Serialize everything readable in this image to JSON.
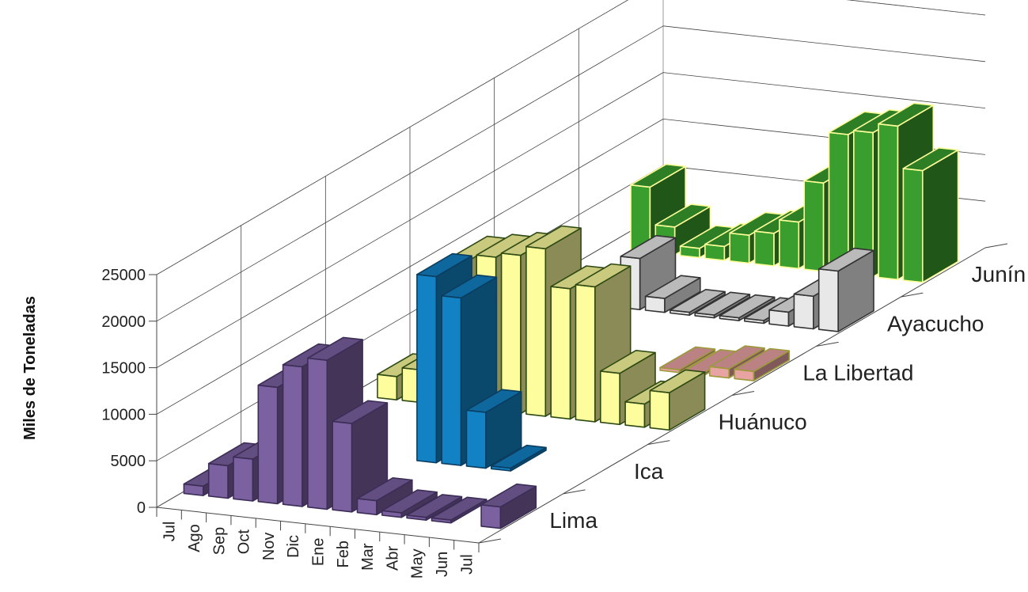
{
  "chart_data": {
    "type": "bar",
    "subtype": "3d-bar",
    "title": "",
    "xlabel": "",
    "ylabel": "Miles de Toneladas",
    "ylim": [
      0,
      25000
    ],
    "yticks": [
      "0",
      "5000",
      "10000",
      "15000",
      "20000",
      "25000"
    ],
    "grid": true,
    "categories": [
      "Jul",
      "Ago",
      "Sep",
      "Oct",
      "Nov",
      "Dic",
      "Ene",
      "Feb",
      "Mar",
      "Abr",
      "May",
      "Jun",
      "Jul"
    ],
    "series": [
      {
        "name": "Lima",
        "color": "#7B61A0",
        "edge": "#3C2D57",
        "values": [
          1000,
          3500,
          4500,
          12500,
          15000,
          16000,
          9500,
          1500,
          500,
          300,
          200,
          null,
          2300
        ]
      },
      {
        "name": "Ica",
        "color": "#1282C4",
        "edge": "#0B3D60",
        "values": [
          null,
          null,
          null,
          null,
          null,
          null,
          20000,
          18000,
          6000,
          0,
          null,
          null,
          null
        ]
      },
      {
        "name": "Huánuco",
        "color": "#FDFD9E",
        "edge": "#2E4A12",
        "values": [
          null,
          2500,
          3500,
          11500,
          16000,
          16500,
          17000,
          18000,
          14000,
          14500,
          5500,
          2500,
          4000
        ]
      },
      {
        "name": "La Libertad",
        "color": "#E8A3A3",
        "edge": "#9C9A3A",
        "values": [
          null,
          null,
          null,
          null,
          null,
          null,
          null,
          null,
          null,
          0,
          0,
          1000,
          1000
        ]
      },
      {
        "name": "Ayacucho",
        "color": "#E8E8E8",
        "edge": "#333333",
        "values": [
          null,
          null,
          null,
          null,
          5500,
          1500,
          0,
          0,
          0,
          300,
          1500,
          3500,
          6500
        ]
      },
      {
        "name": "Junín",
        "color": "#3A9E2E",
        "edge": "#FFFF99",
        "values": [
          null,
          7000,
          3000,
          1000,
          1500,
          3000,
          3500,
          5000,
          9500,
          15000,
          15500,
          16500,
          12000
        ]
      }
    ]
  }
}
